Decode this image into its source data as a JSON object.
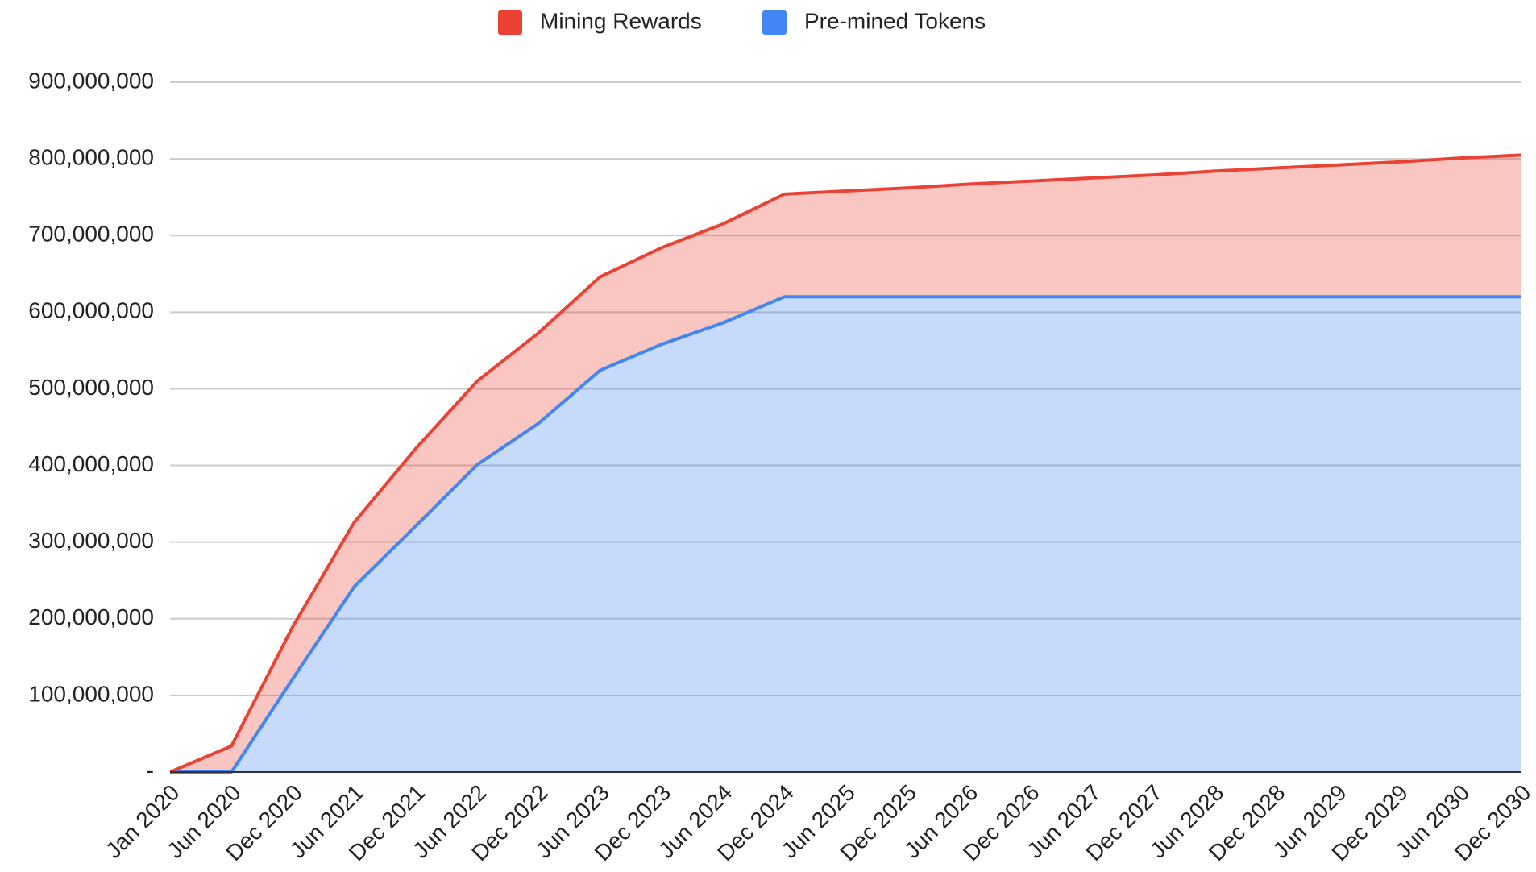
{
  "chart_data": {
    "type": "stacked_area",
    "categories": [
      "Jan 2020",
      "Jun 2020",
      "Dec 2020",
      "Jun 2021",
      "Dec 2021",
      "Jun 2022",
      "Dec 2022",
      "Jun 2023",
      "Dec 2023",
      "Jun 2024",
      "Dec 2024",
      "Jun 2025",
      "Dec 2025",
      "Jun 2026",
      "Dec 2026",
      "Jun 2027",
      "Dec 2027",
      "Jun 2028",
      "Dec 2028",
      "Jun 2029",
      "Dec 2029",
      "Jun 2030",
      "Dec 2030"
    ],
    "series": [
      {
        "name": "Mining Rewards",
        "color": "#ea4335",
        "values": [
          0,
          34000000,
          68000000,
          84000000,
          101000000,
          109000000,
          118000000,
          122000000,
          126000000,
          129000000,
          134000000,
          138000000,
          142000000,
          147000000,
          151000000,
          155000000,
          159000000,
          164000000,
          168000000,
          172000000,
          176000000,
          181000000,
          185000000
        ]
      },
      {
        "name": "Pre-mined Tokens",
        "color": "#4285f4",
        "values": [
          0,
          0,
          122000000,
          242000000,
          321000000,
          401000000,
          455000000,
          524000000,
          558000000,
          586000000,
          620000000,
          620000000,
          620000000,
          620000000,
          620000000,
          620000000,
          620000000,
          620000000,
          620000000,
          620000000,
          620000000,
          620000000,
          620000000
        ]
      }
    ],
    "ylim": [
      0,
      900000000
    ],
    "yticks": [
      {
        "value": 0,
        "label": "-"
      },
      {
        "value": 100000000,
        "label": "100,000,000"
      },
      {
        "value": 200000000,
        "label": "200,000,000"
      },
      {
        "value": 300000000,
        "label": "300,000,000"
      },
      {
        "value": 400000000,
        "label": "400,000,000"
      },
      {
        "value": 500000000,
        "label": "500,000,000"
      },
      {
        "value": 600000000,
        "label": "600,000,000"
      },
      {
        "value": 700000000,
        "label": "700,000,000"
      },
      {
        "value": 800000000,
        "label": "800,000,000"
      },
      {
        "value": 900000000,
        "label": "900,000,000"
      }
    ],
    "grid": true,
    "legend": "top"
  }
}
